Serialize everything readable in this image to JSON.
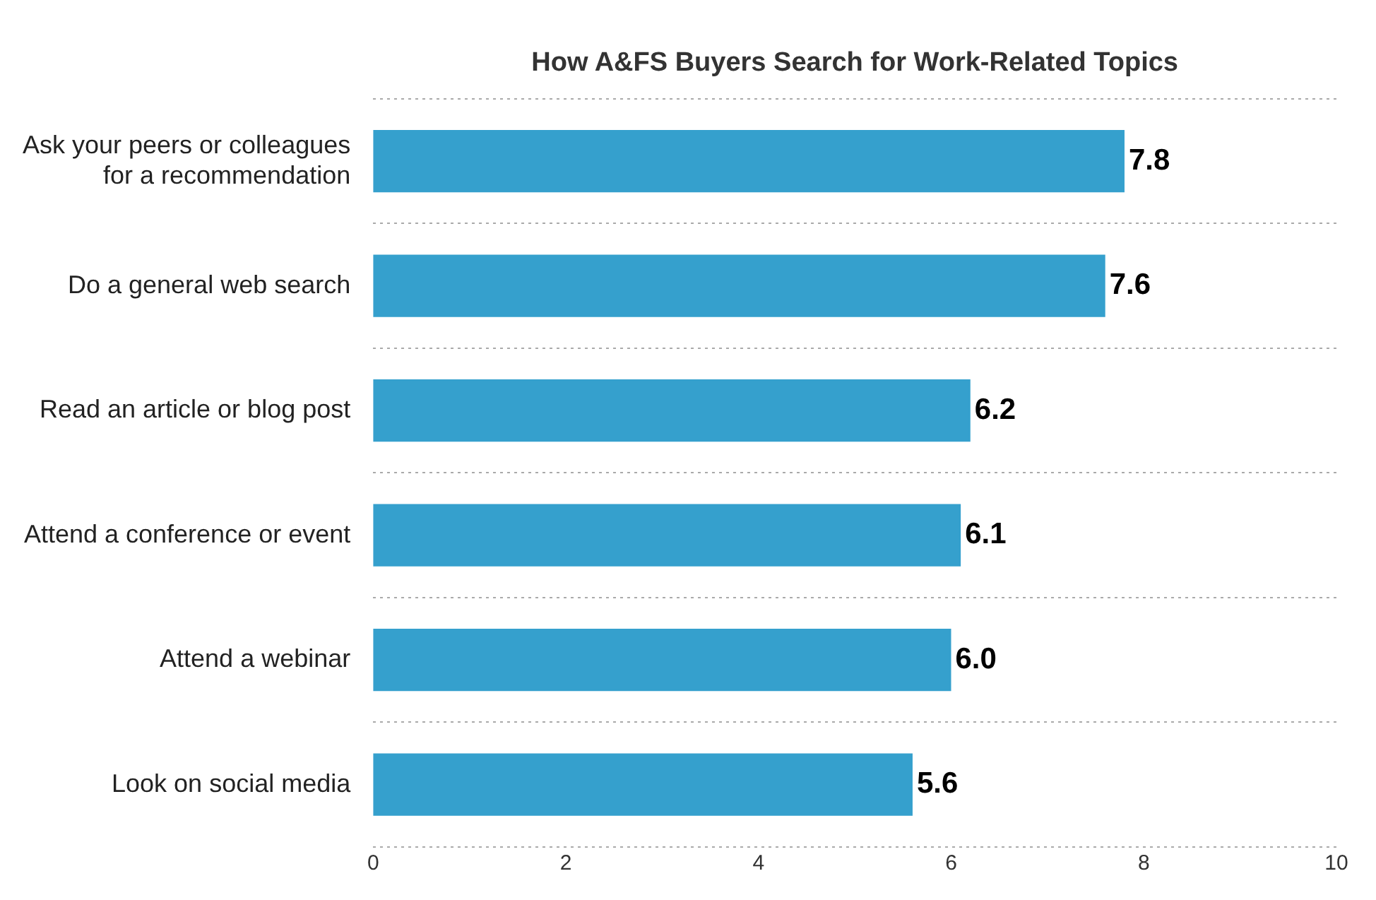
{
  "chart_data": {
    "type": "bar",
    "orientation": "horizontal",
    "title": "How A&FS Buyers Search for Work-Related Topics",
    "categories": [
      "Ask your peers or colleagues for a recommendation",
      "Do a general web search",
      "Read an article or blog post",
      "Attend a conference or event",
      "Attend a webinar",
      "Look on social media"
    ],
    "values": [
      7.8,
      7.6,
      6.2,
      6.1,
      6.0,
      5.6
    ],
    "value_labels": [
      "7.8",
      "7.6",
      "6.2",
      "6.1",
      "6.0",
      "5.6"
    ],
    "color": "#35a0cd",
    "xlim": [
      0,
      10
    ],
    "xticks": [
      0,
      2,
      4,
      6,
      8,
      10
    ],
    "grid": "y",
    "legend": false
  }
}
